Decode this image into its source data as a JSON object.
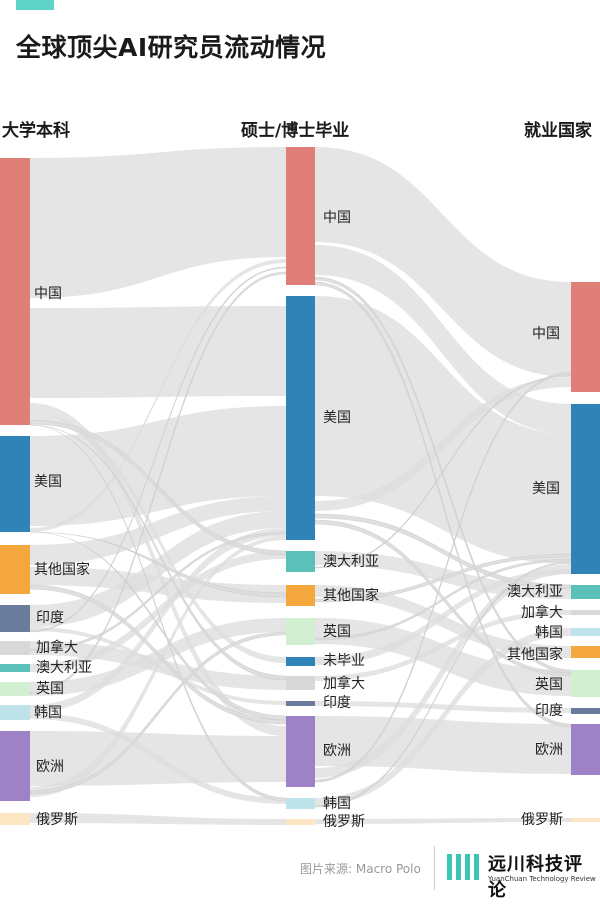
{
  "header": {
    "accent_color": "#5fd3c6",
    "title": "全球顶尖AI研究员流动情况"
  },
  "columns": {
    "left": "大学本科",
    "middle": "硕士/博士毕业",
    "right": "就业国家"
  },
  "colors": {
    "china": "#e07f78",
    "usa": "#2f83b7",
    "other": "#f4a73d",
    "india": "#6a7b9c",
    "canada": "#d8d8d8",
    "australia": "#5bc1b8",
    "uk": "#d2efd2",
    "korea": "#bfe3ea",
    "europe": "#9e82c8",
    "russia": "#fde6c4",
    "unfinished": "#2f83b7",
    "flow": "#dcdcdc"
  },
  "left_nodes": [
    {
      "label": "中国",
      "color": "china"
    },
    {
      "label": "美国",
      "color": "usa"
    },
    {
      "label": "其他国家",
      "color": "other"
    },
    {
      "label": "印度",
      "color": "india"
    },
    {
      "label": "加拿大",
      "color": "canada"
    },
    {
      "label": "澳大利亚",
      "color": "australia"
    },
    {
      "label": "英国",
      "color": "uk"
    },
    {
      "label": "韩国",
      "color": "korea"
    },
    {
      "label": "欧洲",
      "color": "europe"
    },
    {
      "label": "俄罗斯",
      "color": "russia"
    }
  ],
  "middle_nodes": [
    {
      "label": "中国",
      "color": "china"
    },
    {
      "label": "美国",
      "color": "usa"
    },
    {
      "label": "澳大利亚",
      "color": "australia"
    },
    {
      "label": "其他国家",
      "color": "other"
    },
    {
      "label": "英国",
      "color": "uk"
    },
    {
      "label": "未毕业",
      "color": "unfinished"
    },
    {
      "label": "加拿大",
      "color": "canada"
    },
    {
      "label": "印度",
      "color": "india"
    },
    {
      "label": "欧洲",
      "color": "europe"
    },
    {
      "label": "韩国",
      "color": "korea"
    },
    {
      "label": "俄罗斯",
      "color": "russia"
    }
  ],
  "right_nodes": [
    {
      "label": "中国",
      "color": "china"
    },
    {
      "label": "美国",
      "color": "usa"
    },
    {
      "label": "澳大利亚",
      "color": "australia"
    },
    {
      "label": "加拿大",
      "color": "canada"
    },
    {
      "label": "韩国",
      "color": "korea"
    },
    {
      "label": "其他国家",
      "color": "other"
    },
    {
      "label": "英国",
      "color": "uk"
    },
    {
      "label": "印度",
      "color": "india"
    },
    {
      "label": "欧洲",
      "color": "europe"
    },
    {
      "label": "俄罗斯",
      "color": "russia"
    }
  ],
  "footer": {
    "source": "图片来源: Macro Polo",
    "logo_cn": "远川科技评论",
    "logo_en": "YuanChuan Technology Review",
    "logo_color": "#3cc6b5"
  }
}
